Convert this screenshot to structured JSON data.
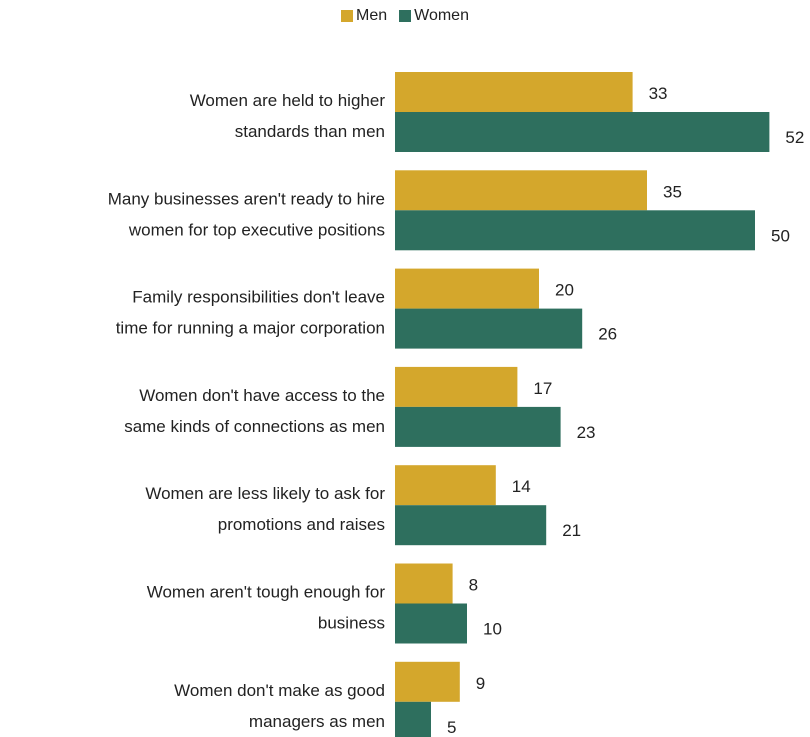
{
  "chart_data": {
    "type": "bar",
    "orientation": "horizontal",
    "categories": [
      [
        "Women are held to higher",
        "standards than men"
      ],
      [
        "Many businesses aren't ready to hire",
        "women for top executive positions"
      ],
      [
        "Family responsibilities don't leave",
        "time for running a major corporation"
      ],
      [
        "Women don't have access to the",
        "same kinds of connections as men"
      ],
      [
        "Women are less likely to ask for",
        "promotions and  raises"
      ],
      [
        "Women aren't tough enough for",
        "business"
      ],
      [
        "Women don't make as good",
        "managers as men"
      ]
    ],
    "series": [
      {
        "name": "Men",
        "color": "#d4a72c",
        "values": [
          33,
          35,
          20,
          17,
          14,
          8,
          9
        ]
      },
      {
        "name": "Women",
        "color": "#2e6f5e",
        "values": [
          52,
          50,
          26,
          23,
          21,
          10,
          5
        ]
      }
    ],
    "legend_position": "top-center",
    "grid": false
  }
}
